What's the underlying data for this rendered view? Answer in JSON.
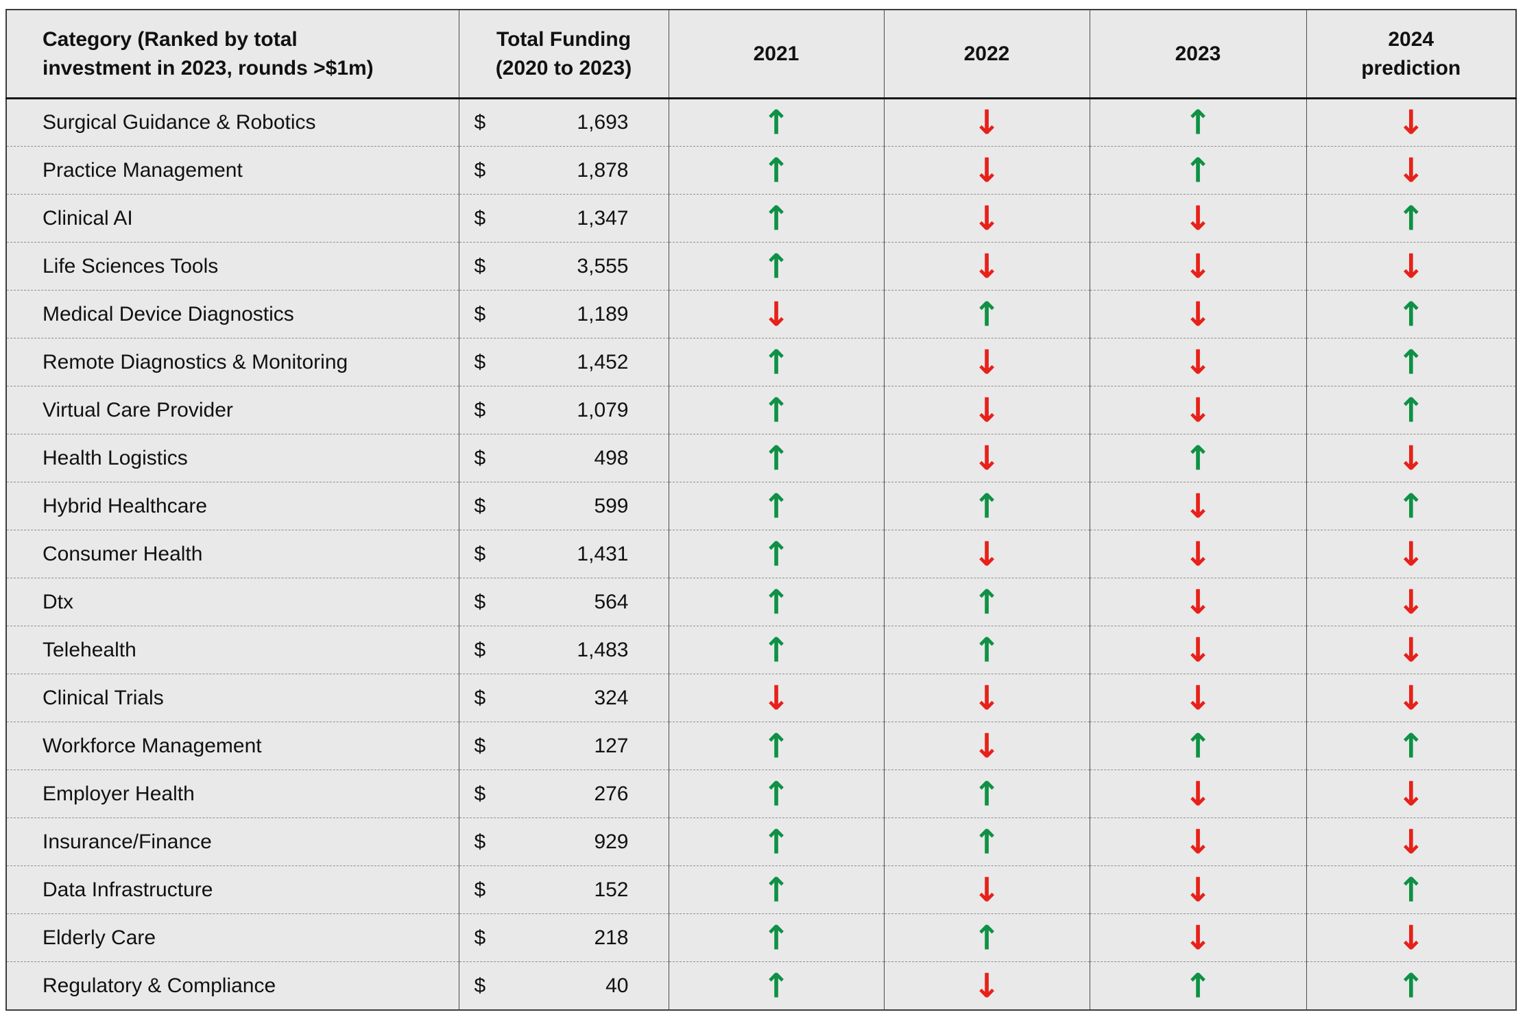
{
  "colors": {
    "up_arrow": "#0e9145",
    "down_arrow": "#e7211a",
    "cell_background": "#e9e9e9"
  },
  "arrow_glyphs": {
    "up": "↑",
    "down": "↓"
  },
  "table": {
    "currency_symbol": "$",
    "headers": {
      "category_line1": "Category (Ranked by total",
      "category_line2": "investment in 2023, rounds >$1m)",
      "total_funding_line1": "Total Funding",
      "total_funding_line2": "(2020 to 2023)",
      "y2021": "2021",
      "y2022": "2022",
      "y2023": "2023",
      "y2024_line1": "2024",
      "y2024_line2": "prediction"
    },
    "rows": [
      {
        "category": "Surgical Guidance & Robotics",
        "funding": "1,693",
        "trends": {
          "y2021": "up",
          "y2022": "down",
          "y2023": "up",
          "y2024": "down"
        }
      },
      {
        "category": "Practice Management",
        "funding": "1,878",
        "trends": {
          "y2021": "up",
          "y2022": "down",
          "y2023": "up",
          "y2024": "down"
        }
      },
      {
        "category": "Clinical AI",
        "funding": "1,347",
        "trends": {
          "y2021": "up",
          "y2022": "down",
          "y2023": "down",
          "y2024": "up"
        }
      },
      {
        "category": "Life Sciences Tools",
        "funding": "3,555",
        "trends": {
          "y2021": "up",
          "y2022": "down",
          "y2023": "down",
          "y2024": "down"
        }
      },
      {
        "category": "Medical Device Diagnostics",
        "funding": "1,189",
        "trends": {
          "y2021": "down",
          "y2022": "up",
          "y2023": "down",
          "y2024": "up"
        }
      },
      {
        "category": "Remote Diagnostics & Monitoring",
        "funding": "1,452",
        "trends": {
          "y2021": "up",
          "y2022": "down",
          "y2023": "down",
          "y2024": "up"
        }
      },
      {
        "category": "Virtual Care Provider",
        "funding": "1,079",
        "trends": {
          "y2021": "up",
          "y2022": "down",
          "y2023": "down",
          "y2024": "up"
        }
      },
      {
        "category": "Health Logistics",
        "funding": "498",
        "trends": {
          "y2021": "up",
          "y2022": "down",
          "y2023": "up",
          "y2024": "down"
        }
      },
      {
        "category": "Hybrid Healthcare",
        "funding": "599",
        "trends": {
          "y2021": "up",
          "y2022": "up",
          "y2023": "down",
          "y2024": "up"
        }
      },
      {
        "category": "Consumer Health",
        "funding": "1,431",
        "trends": {
          "y2021": "up",
          "y2022": "down",
          "y2023": "down",
          "y2024": "down"
        }
      },
      {
        "category": "Dtx",
        "funding": "564",
        "trends": {
          "y2021": "up",
          "y2022": "up",
          "y2023": "down",
          "y2024": "down"
        }
      },
      {
        "category": "Telehealth",
        "funding": "1,483",
        "trends": {
          "y2021": "up",
          "y2022": "up",
          "y2023": "down",
          "y2024": "down"
        }
      },
      {
        "category": "Clinical Trials",
        "funding": "324",
        "trends": {
          "y2021": "down",
          "y2022": "down",
          "y2023": "down",
          "y2024": "down"
        }
      },
      {
        "category": "Workforce Management",
        "funding": "127",
        "trends": {
          "y2021": "up",
          "y2022": "down",
          "y2023": "up",
          "y2024": "up"
        }
      },
      {
        "category": "Employer Health",
        "funding": "276",
        "trends": {
          "y2021": "up",
          "y2022": "up",
          "y2023": "down",
          "y2024": "down"
        }
      },
      {
        "category": "Insurance/Finance",
        "funding": "929",
        "trends": {
          "y2021": "up",
          "y2022": "up",
          "y2023": "down",
          "y2024": "down"
        }
      },
      {
        "category": "Data Infrastructure",
        "funding": "152",
        "trends": {
          "y2021": "up",
          "y2022": "down",
          "y2023": "down",
          "y2024": "up"
        }
      },
      {
        "category": "Elderly Care",
        "funding": "218",
        "trends": {
          "y2021": "up",
          "y2022": "up",
          "y2023": "down",
          "y2024": "down"
        }
      },
      {
        "category": "Regulatory & Compliance",
        "funding": "40",
        "trends": {
          "y2021": "up",
          "y2022": "down",
          "y2023": "up",
          "y2024": "up"
        }
      }
    ]
  }
}
